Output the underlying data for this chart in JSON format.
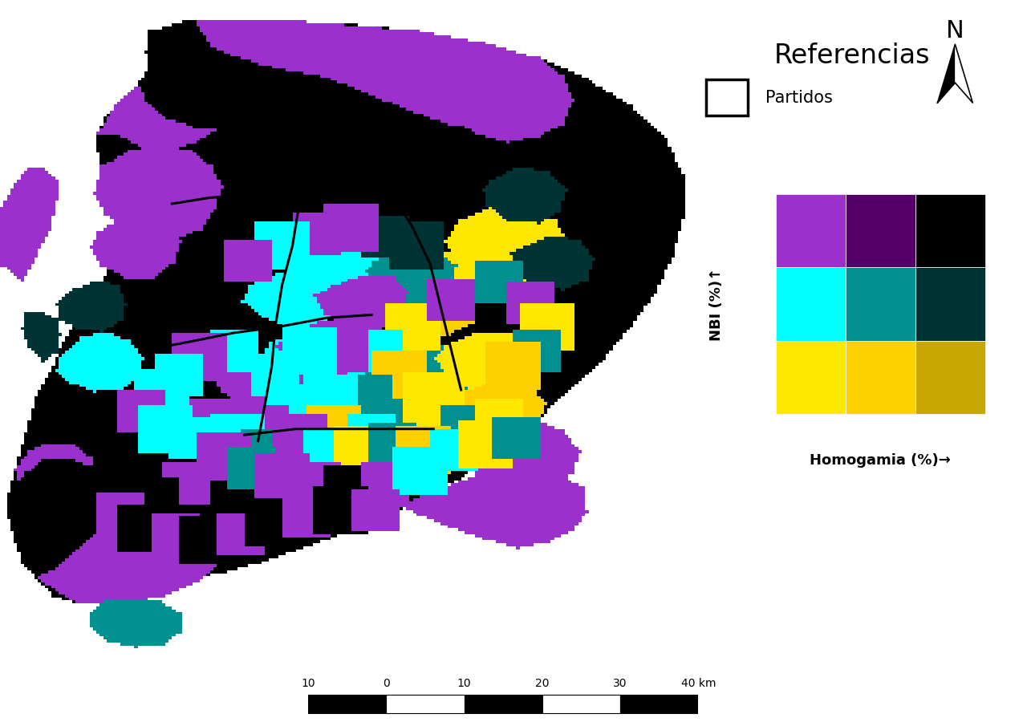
{
  "referencias_title": "Referencias",
  "partidos_label": "Partidos",
  "nbi_label": "NBI (%)↑",
  "homogamia_label": "Homogamia (%)→",
  "legend_colors": [
    [
      "#9B30CC",
      "#550066",
      "#000000"
    ],
    [
      "#00FFFF",
      "#009090",
      "#003333"
    ],
    [
      "#FFE800",
      "#FFD000",
      "#C8A800"
    ]
  ],
  "background_color": "#ffffff",
  "map_purple": "#9B30CC",
  "map_dark_purple": "#550066",
  "map_black": "#000000",
  "map_cyan": "#00FFFF",
  "map_teal": "#009090",
  "map_dark_teal": "#003333",
  "map_yellow": "#FFE800",
  "map_yellow2": "#FFD000",
  "map_yellow3": "#C8A800",
  "scale_labels": [
    "10",
    "0",
    "10",
    "20",
    "30",
    "40 km"
  ],
  "scale_positions": [
    0.0,
    1.0,
    2.0,
    3.0,
    4.0,
    5.0
  ],
  "scale_seg_colors": [
    "black",
    "white",
    "black",
    "white",
    "black"
  ]
}
